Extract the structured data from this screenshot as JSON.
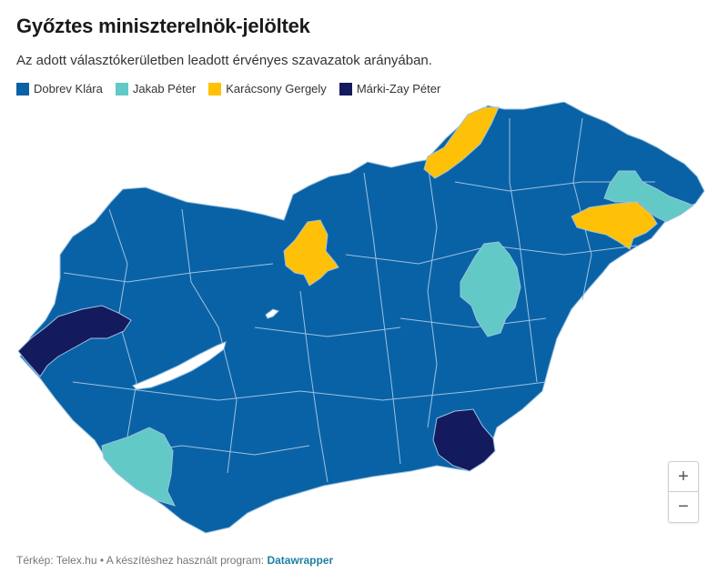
{
  "header": {
    "title": "Győztes miniszterelnök-jelöltek",
    "subtitle": "Az adott választókerületben leadott érvényes szavazatok arányában."
  },
  "legend": [
    {
      "label": "Dobrev Klára",
      "color": "#0a62a6"
    },
    {
      "label": "Jakab Péter",
      "color": "#62c9c6"
    },
    {
      "label": "Karácsony Gergely",
      "color": "#ffc107"
    },
    {
      "label": "Márki-Zay Péter",
      "color": "#141a5e"
    }
  ],
  "map": {
    "lake_color": "#ffffff",
    "border_color": "#9cc2e0"
  },
  "zoom": {
    "in_label": "+",
    "out_label": "−"
  },
  "footer": {
    "credit": "Térkép: Telex.hu • A készítéshez használt program: ",
    "tool": "Datawrapper"
  }
}
